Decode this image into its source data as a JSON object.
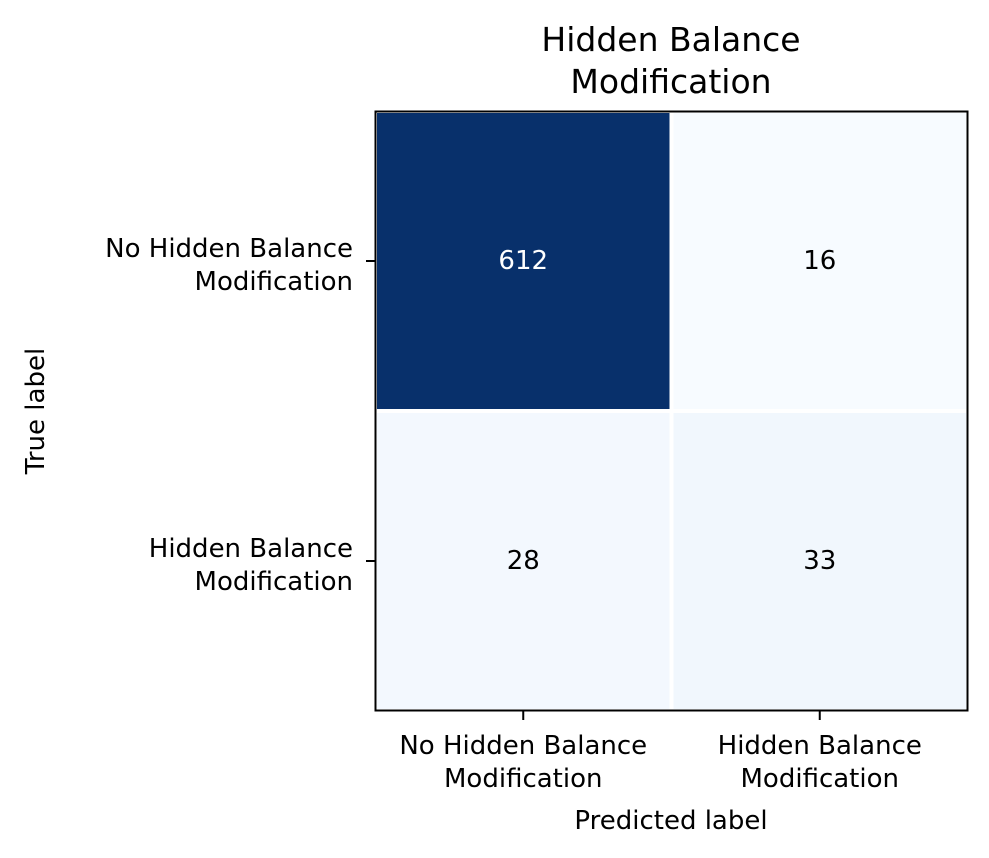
{
  "chart_data": {
    "type": "heatmap",
    "title": [
      "Hidden Balance",
      "Modification"
    ],
    "xlabel": "Predicted label",
    "ylabel": "True label",
    "x_categories": [
      [
        "No Hidden Balance",
        "Modification"
      ],
      [
        "Hidden Balance",
        "Modification"
      ]
    ],
    "y_categories": [
      [
        "No Hidden Balance",
        "Modification"
      ],
      [
        "Hidden Balance",
        "Modification"
      ]
    ],
    "values": [
      [
        612,
        16
      ],
      [
        28,
        33
      ]
    ],
    "colormap": "Blues",
    "colors": {
      "high": "#08306b",
      "low": "#f7fbff",
      "text_dark": "#000000",
      "text_light": "#ffffff",
      "cell_border": "#ffffff",
      "frame": "#000000"
    }
  }
}
